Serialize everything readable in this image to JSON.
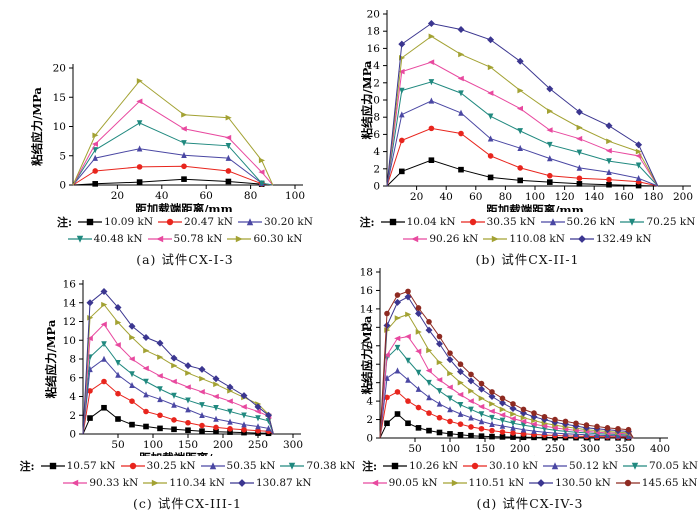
{
  "note_prefix": "注:",
  "chart_data": [
    {
      "type": "line",
      "panel": "a",
      "title": "(a) 试件CX-I-3",
      "xlabel": "距加载端距离/mm",
      "ylabel": "粘结应力/MPa",
      "xlim": [
        0,
        100
      ],
      "ylim": [
        0,
        20
      ],
      "xticks": [
        20,
        40,
        60,
        80,
        100
      ],
      "yticks": [
        0,
        5,
        10,
        15,
        20
      ],
      "legend_rows": [
        3,
        3
      ],
      "x": [
        0,
        10,
        30,
        50,
        70,
        85,
        90
      ],
      "series": [
        {
          "name": "10.09 kN",
          "color": "#000000",
          "marker": "square",
          "values": [
            0,
            0.2,
            0.5,
            1.0,
            0.6,
            0.15,
            0
          ]
        },
        {
          "name": "20.47 kN",
          "color": "#e8251d",
          "marker": "circle",
          "values": [
            0,
            2.4,
            3.1,
            3.2,
            2.4,
            0.2,
            0
          ]
        },
        {
          "name": "30.20 kN",
          "color": "#4a47a3",
          "marker": "triangle-up",
          "values": [
            0,
            4.6,
            6.2,
            5.1,
            4.6,
            0.3,
            0
          ]
        },
        {
          "name": "40.48 kN",
          "color": "#20897f",
          "marker": "triangle-down",
          "values": [
            0,
            6.0,
            10.6,
            7.2,
            6.7,
            0.3,
            0
          ]
        },
        {
          "name": "50.78 kN",
          "color": "#e8499f",
          "marker": "triangle-left",
          "values": [
            0,
            7.0,
            14.3,
            9.6,
            8.1,
            2.2,
            0
          ]
        },
        {
          "name": "60.30 kN",
          "color": "#a3a233",
          "marker": "triangle-right",
          "values": [
            0,
            8.5,
            17.8,
            12.0,
            11.5,
            4.2,
            0
          ]
        }
      ]
    },
    {
      "type": "line",
      "panel": "b",
      "title": "(b) 试件CX-II-1",
      "xlabel": "距加载端距离/mm",
      "ylabel": "粘结应力/MPa",
      "xlim": [
        0,
        200
      ],
      "ylim": [
        0,
        20
      ],
      "xticks": [
        20,
        40,
        60,
        80,
        100,
        120,
        140,
        160,
        180,
        200
      ],
      "yticks": [
        0,
        2,
        4,
        6,
        8,
        10,
        12,
        14,
        16,
        18,
        20
      ],
      "legend_rows": [
        4,
        3
      ],
      "x": [
        0,
        10,
        30,
        50,
        70,
        90,
        110,
        130,
        150,
        170,
        183
      ],
      "series": [
        {
          "name": "10.04 kN",
          "color": "#000000",
          "marker": "square",
          "values": [
            0,
            1.7,
            3.0,
            1.9,
            1.0,
            0.65,
            0.45,
            0.25,
            0.15,
            0.05,
            0
          ]
        },
        {
          "name": "30.35 kN",
          "color": "#e8251d",
          "marker": "circle",
          "values": [
            0,
            5.3,
            6.7,
            6.1,
            3.5,
            2.1,
            1.2,
            0.9,
            0.75,
            0.5,
            0
          ]
        },
        {
          "name": "50.26 kN",
          "color": "#4a47a3",
          "marker": "triangle-up",
          "values": [
            0,
            8.3,
            9.9,
            8.5,
            5.5,
            4.4,
            3.2,
            2.1,
            1.6,
            0.9,
            0
          ]
        },
        {
          "name": "70.25 kN",
          "color": "#20897f",
          "marker": "triangle-down",
          "values": [
            0,
            11.1,
            12.1,
            10.8,
            8.1,
            6.4,
            4.8,
            3.9,
            2.9,
            2.4,
            0
          ]
        },
        {
          "name": "90.26 kN",
          "color": "#e8499f",
          "marker": "triangle-left",
          "values": [
            0,
            13.3,
            14.4,
            12.5,
            10.8,
            9.0,
            6.5,
            5.5,
            4.1,
            3.5,
            0
          ]
        },
        {
          "name": "110.08 kN",
          "color": "#a3a233",
          "marker": "triangle-right",
          "values": [
            0,
            14.9,
            17.4,
            15.3,
            13.8,
            11.1,
            8.7,
            6.8,
            5.2,
            4.0,
            0
          ]
        },
        {
          "name": "132.49 kN",
          "color": "#3b3690",
          "marker": "diamond",
          "values": [
            0,
            16.5,
            18.9,
            18.2,
            17.0,
            14.5,
            11.3,
            8.6,
            7.0,
            4.8,
            0
          ]
        }
      ]
    },
    {
      "type": "line",
      "panel": "c",
      "title": "(c) 试件CX-III-1",
      "xlabel": "距加载端距离/mm",
      "ylabel": "粘结应力/MPa",
      "xlim": [
        0,
        300
      ],
      "ylim": [
        0,
        16
      ],
      "xticks": [
        50,
        100,
        150,
        200,
        250,
        300
      ],
      "yticks": [
        0,
        2,
        4,
        6,
        8,
        10,
        12,
        14,
        16
      ],
      "legend_rows": [
        4,
        3
      ],
      "x": [
        0,
        10,
        30,
        50,
        70,
        90,
        110,
        130,
        150,
        170,
        190,
        210,
        230,
        250,
        265,
        272
      ],
      "series": [
        {
          "name": "10.57 kN",
          "color": "#000000",
          "marker": "square",
          "values": [
            0,
            1.7,
            2.8,
            1.6,
            1.0,
            0.8,
            0.6,
            0.5,
            0.4,
            0.3,
            0.25,
            0.2,
            0.15,
            0.1,
            0.08,
            0
          ]
        },
        {
          "name": "30.25 kN",
          "color": "#e8251d",
          "marker": "circle",
          "values": [
            0,
            4.6,
            5.6,
            4.3,
            3.5,
            2.4,
            2.0,
            1.5,
            1.2,
            0.9,
            0.7,
            0.55,
            0.45,
            0.35,
            0.3,
            0
          ]
        },
        {
          "name": "50.35 kN",
          "color": "#4a47a3",
          "marker": "triangle-up",
          "values": [
            0,
            6.9,
            8.0,
            6.3,
            5.2,
            4.2,
            3.7,
            3.1,
            2.6,
            2.0,
            1.6,
            1.3,
            1.0,
            0.8,
            0.6,
            0
          ]
        },
        {
          "name": "70.38 kN",
          "color": "#20897f",
          "marker": "triangle-down",
          "values": [
            0,
            8.2,
            9.6,
            7.6,
            6.4,
            5.6,
            4.8,
            4.1,
            3.6,
            3.1,
            2.8,
            2.4,
            2.0,
            1.7,
            1.4,
            0
          ]
        },
        {
          "name": "90.33 kN",
          "color": "#e8499f",
          "marker": "triangle-left",
          "values": [
            0,
            10.2,
            11.7,
            9.5,
            8.0,
            7.0,
            6.2,
            5.6,
            5.0,
            4.5,
            4.0,
            3.5,
            2.9,
            2.4,
            1.9,
            0
          ]
        },
        {
          "name": "110.34 kN",
          "color": "#a3a233",
          "marker": "triangle-right",
          "values": [
            0,
            12.4,
            13.8,
            11.9,
            10.3,
            8.9,
            8.2,
            7.3,
            6.5,
            5.9,
            5.3,
            4.6,
            3.9,
            3.2,
            2.1,
            0
          ]
        },
        {
          "name": "130.87 kN",
          "color": "#3b3690",
          "marker": "diamond",
          "values": [
            0,
            14.0,
            15.2,
            13.5,
            11.5,
            10.3,
            9.7,
            8.1,
            7.3,
            6.9,
            5.9,
            5.0,
            4.1,
            2.9,
            2.0,
            0
          ]
        }
      ]
    },
    {
      "type": "line",
      "panel": "d",
      "title": "(d) 试件CX-IV-3",
      "xlabel": "距加载端距离/mm",
      "ylabel": "粘结应力/MPa",
      "xlim": [
        0,
        400
      ],
      "ylim": [
        0,
        18
      ],
      "xticks": [
        50,
        100,
        150,
        200,
        250,
        300,
        350,
        400
      ],
      "yticks": [
        0,
        2,
        4,
        6,
        8,
        10,
        12,
        14,
        16,
        18
      ],
      "legend_rows": [
        4,
        4
      ],
      "x": [
        0,
        10,
        25,
        40,
        55,
        70,
        85,
        100,
        115,
        130,
        145,
        160,
        175,
        190,
        205,
        220,
        235,
        250,
        265,
        280,
        295,
        310,
        325,
        340,
        355,
        362
      ],
      "series": [
        {
          "name": "10.26 kN",
          "color": "#000000",
          "marker": "square",
          "values": [
            0,
            1.6,
            2.6,
            1.6,
            1.1,
            0.8,
            0.6,
            0.45,
            0.35,
            0.25,
            0.2,
            0.15,
            0.12,
            0.1,
            0.08,
            0.07,
            0.06,
            0.05,
            0.05,
            0.04,
            0.04,
            0.03,
            0.03,
            0.02,
            0.02,
            0
          ]
        },
        {
          "name": "30.10 kN",
          "color": "#e8251d",
          "marker": "circle",
          "values": [
            0,
            4.4,
            5.0,
            4.0,
            3.3,
            2.7,
            2.2,
            1.8,
            1.5,
            1.2,
            1.0,
            0.8,
            0.65,
            0.55,
            0.45,
            0.38,
            0.32,
            0.27,
            0.23,
            0.2,
            0.17,
            0.15,
            0.13,
            0.12,
            0.1,
            0
          ]
        },
        {
          "name": "50.12 kN",
          "color": "#4a47a3",
          "marker": "triangle-up",
          "values": [
            0,
            6.5,
            7.3,
            6.3,
            5.3,
            4.4,
            3.7,
            3.1,
            2.6,
            2.2,
            1.8,
            1.5,
            1.3,
            1.1,
            0.9,
            0.75,
            0.63,
            0.53,
            0.45,
            0.4,
            0.35,
            0.3,
            0.27,
            0.24,
            0.2,
            0
          ]
        },
        {
          "name": "70.05 kN",
          "color": "#20897f",
          "marker": "triangle-down",
          "values": [
            0,
            8.7,
            9.8,
            8.4,
            7.1,
            6.0,
            5.1,
            4.3,
            3.6,
            3.1,
            2.6,
            2.2,
            1.9,
            1.6,
            1.4,
            1.2,
            1.0,
            0.85,
            0.72,
            0.62,
            0.55,
            0.48,
            0.42,
            0.38,
            0.33,
            0
          ]
        },
        {
          "name": "90.05 kN",
          "color": "#e8499f",
          "marker": "triangle-left",
          "values": [
            0,
            9.0,
            10.8,
            11.0,
            9.4,
            7.3,
            6.3,
            5.5,
            4.7,
            4.0,
            3.4,
            2.9,
            2.5,
            2.1,
            1.8,
            1.5,
            1.3,
            1.1,
            0.95,
            0.82,
            0.72,
            0.63,
            0.55,
            0.5,
            0.45,
            0
          ]
        },
        {
          "name": "110.51 kN",
          "color": "#a3a233",
          "marker": "triangle-right",
          "values": [
            0,
            11.7,
            13.0,
            13.4,
            11.5,
            9.5,
            8.2,
            7.0,
            6.0,
            5.1,
            4.3,
            3.7,
            3.1,
            2.6,
            2.2,
            1.9,
            1.6,
            1.4,
            1.2,
            1.05,
            0.9,
            0.8,
            0.7,
            0.62,
            0.55,
            0
          ]
        },
        {
          "name": "130.50 kN",
          "color": "#3b3690",
          "marker": "diamond",
          "values": [
            0,
            12.2,
            14.7,
            15.3,
            13.5,
            11.7,
            10.2,
            8.5,
            7.2,
            6.2,
            5.3,
            4.5,
            3.8,
            3.2,
            2.7,
            2.3,
            2.0,
            1.7,
            1.5,
            1.3,
            1.1,
            1.0,
            0.9,
            0.8,
            0.7,
            0
          ]
        },
        {
          "name": "145.65 kN",
          "color": "#8e2a21",
          "marker": "circle",
          "values": [
            0,
            13.5,
            15.5,
            15.9,
            14.1,
            12.6,
            11.0,
            9.2,
            8.0,
            6.9,
            5.9,
            5.0,
            4.3,
            3.7,
            3.1,
            2.7,
            2.3,
            2.0,
            1.8,
            1.6,
            1.4,
            1.25,
            1.1,
            1.0,
            0.9,
            0
          ]
        }
      ]
    }
  ]
}
